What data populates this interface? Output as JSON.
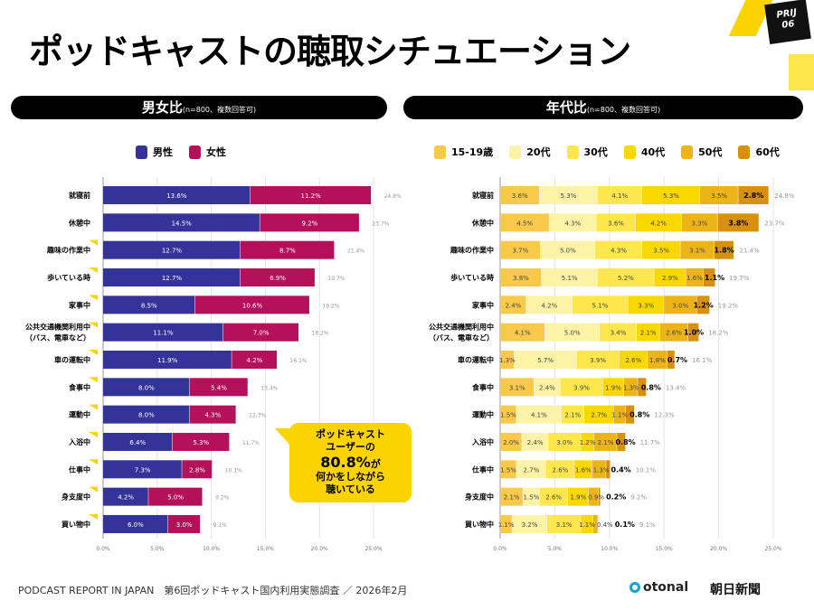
{
  "title": "ポッドキャストの聴取シチュエーション",
  "badge": {
    "line1": "PRIJ",
    "line2": "06"
  },
  "left_header": {
    "main": "男女比",
    "note": "(n=800、複数回答可)"
  },
  "right_header": {
    "main": "年代比",
    "note": "(n=800、複数回答可)"
  },
  "callout": {
    "line1": "ポッドキャスト",
    "line2": "ユーザーの",
    "big": "80.8%",
    "big_suffix": "が",
    "line4": "何かをしながら",
    "line5": "聴いている"
  },
  "footer": {
    "text": "PODCAST REPORT IN JAPAN　第6回ポッドキャスト国内利用実態調査 ／ 2026年2月",
    "logo1": "otonal",
    "logo2": "朝日新聞"
  },
  "chart_data": [
    {
      "type": "bar",
      "stacked": true,
      "orientation": "horizontal",
      "categories": [
        "就寝前",
        "休憩中",
        "趣味の作業中",
        "歩いている時",
        "家事中",
        "公共交通機関利用中（バス、電車など）",
        "車の運転中",
        "食事中",
        "運動中",
        "入浴中",
        "仕事中",
        "身支度中",
        "買い物中"
      ],
      "series": [
        {
          "name": "男性",
          "color": "#33339a",
          "values": [
            13.6,
            14.5,
            12.7,
            12.7,
            8.5,
            11.1,
            11.9,
            8.0,
            8.0,
            6.4,
            7.3,
            4.2,
            6.0
          ]
        },
        {
          "name": "女性",
          "color": "#b5115a",
          "values": [
            11.2,
            9.2,
            8.7,
            6.9,
            10.6,
            7.0,
            4.2,
            5.4,
            4.3,
            5.3,
            2.8,
            5.0,
            3.0
          ]
        }
      ],
      "totals": [
        24.8,
        23.7,
        21.4,
        19.7,
        19.2,
        18.2,
        16.1,
        13.4,
        12.3,
        11.7,
        10.1,
        9.2,
        9.1
      ],
      "xlim": [
        0,
        25
      ],
      "xticks": [
        "0.0%",
        "5.0%",
        "10.0%",
        "15.0%",
        "20.0%",
        "25.0%"
      ],
      "grid": true,
      "legend": "top"
    },
    {
      "type": "bar",
      "stacked": true,
      "orientation": "horizontal",
      "categories": [
        "就寝前",
        "休憩中",
        "趣味の作業中",
        "歩いている時",
        "家事中",
        "公共交通機関利用中（バス、電車など）",
        "車の運転中",
        "食事中",
        "運動中",
        "入浴中",
        "仕事中",
        "身支度中",
        "買い物中"
      ],
      "series": [
        {
          "name": "15-19歳",
          "color": "#f8c94a",
          "values": [
            3.6,
            4.5,
            3.7,
            3.8,
            2.4,
            4.1,
            1.3,
            3.1,
            1.5,
            2.0,
            1.5,
            2.1,
            1.1
          ]
        },
        {
          "name": "20代",
          "color": "#fdf3a6",
          "values": [
            5.3,
            4.3,
            5.0,
            5.1,
            4.2,
            5.0,
            5.7,
            2.4,
            4.1,
            2.4,
            2.7,
            1.5,
            3.2
          ]
        },
        {
          "name": "30代",
          "color": "#fde74c",
          "values": [
            4.1,
            3.6,
            4.3,
            5.2,
            5.1,
            3.4,
            3.9,
            3.9,
            2.1,
            3.0,
            2.6,
            2.6,
            3.1
          ]
        },
        {
          "name": "40代",
          "color": "#f9d800",
          "values": [
            5.3,
            4.2,
            3.5,
            2.9,
            3.3,
            2.1,
            2.6,
            1.9,
            2.7,
            1.2,
            1.6,
            1.9,
            1.1
          ]
        },
        {
          "name": "50代",
          "color": "#ecb419",
          "values": [
            3.5,
            3.3,
            3.1,
            1.6,
            3.0,
            2.6,
            1.8,
            1.3,
            1.1,
            2.1,
            1.3,
            0.9,
            0.4
          ]
        },
        {
          "name": "60代",
          "color": "#d9900e",
          "values": [
            2.8,
            3.8,
            1.8,
            1.1,
            1.2,
            1.0,
            0.7,
            0.8,
            0.8,
            0.8,
            0.4,
            0.2,
            0.1
          ]
        }
      ],
      "totals": [
        24.8,
        23.7,
        21.4,
        19.7,
        19.2,
        18.2,
        16.1,
        13.4,
        12.3,
        11.7,
        10.1,
        9.2,
        9.1
      ],
      "xlim": [
        0,
        25
      ],
      "xticks": [
        "0.0%",
        "5.0%",
        "10.0%",
        "15.0%",
        "20.0%",
        "25.0%"
      ],
      "grid": true,
      "legend": "top"
    }
  ]
}
